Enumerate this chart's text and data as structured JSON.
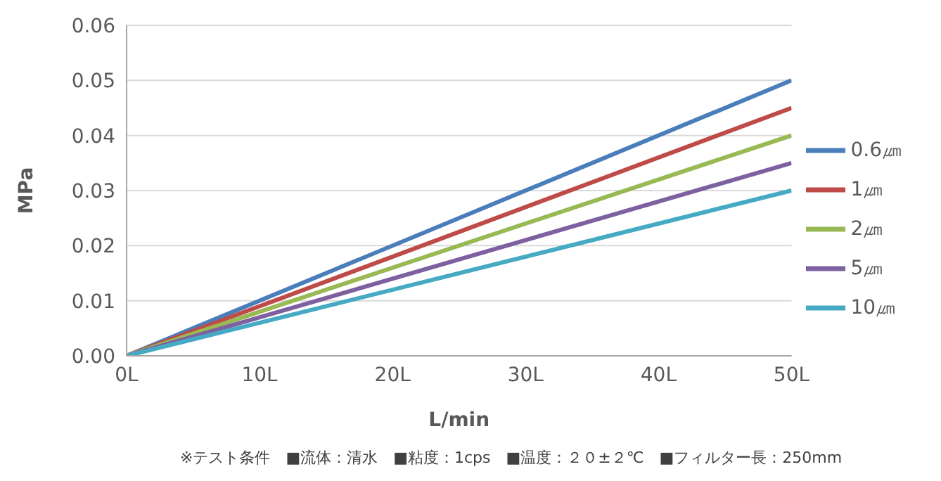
{
  "chart_data": {
    "type": "line",
    "xlabel": "L/min",
    "ylabel": "MPa",
    "x": [
      0,
      50
    ],
    "series": [
      {
        "name": "0.6㎛",
        "color": "#4a7ebb",
        "values": [
          0,
          0.05
        ]
      },
      {
        "name": "1㎛",
        "color": "#be4b48",
        "values": [
          0,
          0.045
        ]
      },
      {
        "name": "2㎛",
        "color": "#98b954",
        "values": [
          0,
          0.04
        ]
      },
      {
        "name": "5㎛",
        "color": "#7d60a0",
        "values": [
          0,
          0.035
        ]
      },
      {
        "name": "10㎛",
        "color": "#46aac5",
        "values": [
          0,
          0.03
        ]
      }
    ],
    "xlim": [
      0,
      50
    ],
    "xticks": [
      {
        "value": 0,
        "label": "0L"
      },
      {
        "value": 10,
        "label": "10L"
      },
      {
        "value": 20,
        "label": "20L"
      },
      {
        "value": 30,
        "label": "30L"
      },
      {
        "value": 40,
        "label": "40L"
      },
      {
        "value": 50,
        "label": "50L"
      }
    ],
    "ylim": [
      0,
      0.06
    ],
    "yticks": [
      {
        "value": 0,
        "label": "0.00"
      },
      {
        "value": 0.01,
        "label": "0.01"
      },
      {
        "value": 0.02,
        "label": "0.02"
      },
      {
        "value": 0.03,
        "label": "0.03"
      },
      {
        "value": 0.04,
        "label": "0.04"
      },
      {
        "value": 0.05,
        "label": "0.05"
      },
      {
        "value": 0.06,
        "label": "0.06"
      }
    ],
    "grid": "y",
    "legend": "right",
    "marker": "none",
    "line_style": "solid",
    "annotations": [
      "※テスト条件　■流体：清水　■粘度：1cps　■温度：２０±２℃　■フィルター長：250mm"
    ]
  }
}
